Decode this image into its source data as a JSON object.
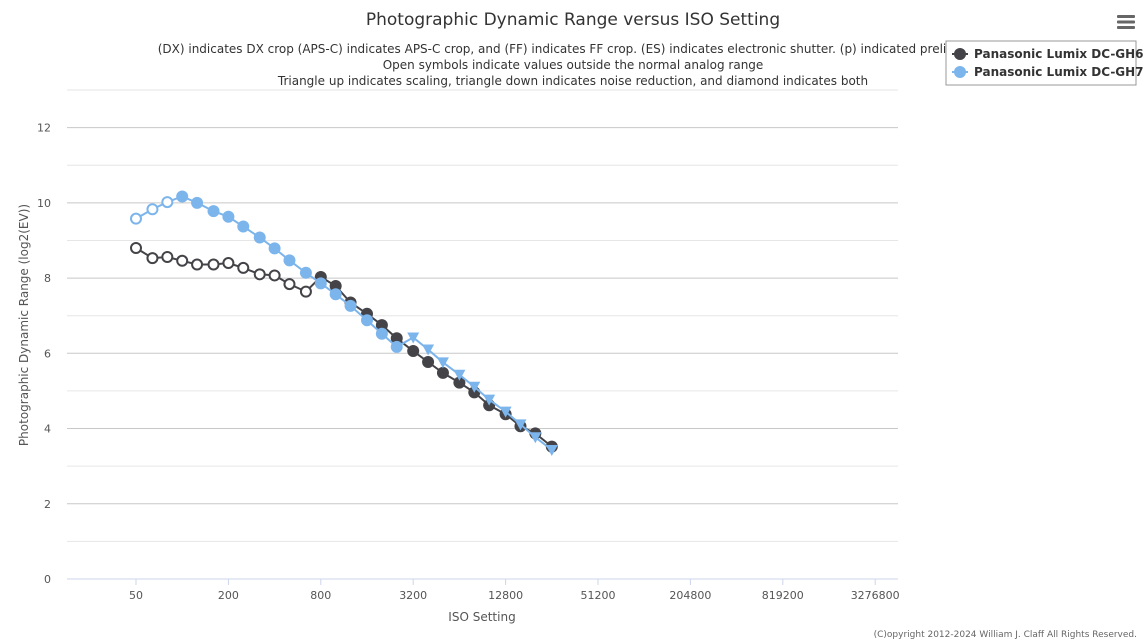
{
  "chart_data": {
    "type": "line",
    "title": "Photographic Dynamic Range versus ISO Setting",
    "subtitle": [
      "(DX) indicates DX crop (APS-C) indicates APS-C crop, and (FF) indicates FF crop. (ES) indicates electronic shutter. (p) indicated preliminary",
      "Open symbols indicate values outside the normal analog range",
      "Triangle up indicates scaling, triangle down indicates noise reduction, and diamond indicates both"
    ],
    "xlabel": "ISO Setting",
    "ylabel": "Photographic Dynamic Range (log2(EV))",
    "x_scale": "log2",
    "x_ticks": [
      50,
      200,
      800,
      3200,
      12800,
      51200,
      204800,
      819200,
      3276800
    ],
    "x_tick_labels": [
      "50",
      "200",
      "800",
      "3200",
      "12800",
      "51200",
      "204800",
      "819200",
      "3276800"
    ],
    "ylim": [
      0,
      13
    ],
    "y_ticks": [
      0,
      2,
      4,
      6,
      8,
      10,
      12
    ],
    "y_tick_labels": [
      "0",
      "2",
      "4",
      "6",
      "8",
      "10",
      "12"
    ],
    "grid": true,
    "legend_position": "top-right",
    "credit": "(C)opyright 2012-2024 William J. Claff All Rights Reserved.",
    "series": [
      {
        "name": "Panasonic Lumix DC-GH6",
        "color": "#434348",
        "points": [
          {
            "x": 50,
            "y": 8.8,
            "marker": "open-circle"
          },
          {
            "x": 64,
            "y": 8.53,
            "marker": "open-circle"
          },
          {
            "x": 80,
            "y": 8.56,
            "marker": "open-circle"
          },
          {
            "x": 100,
            "y": 8.46,
            "marker": "open-circle"
          },
          {
            "x": 125,
            "y": 8.36,
            "marker": "open-circle"
          },
          {
            "x": 160,
            "y": 8.36,
            "marker": "open-circle"
          },
          {
            "x": 200,
            "y": 8.4,
            "marker": "open-circle"
          },
          {
            "x": 250,
            "y": 8.27,
            "marker": "open-circle"
          },
          {
            "x": 320,
            "y": 8.1,
            "marker": "open-circle"
          },
          {
            "x": 400,
            "y": 8.07,
            "marker": "open-circle"
          },
          {
            "x": 500,
            "y": 7.84,
            "marker": "open-circle"
          },
          {
            "x": 640,
            "y": 7.64,
            "marker": "open-circle"
          },
          {
            "x": 800,
            "y": 8.03,
            "marker": "circle"
          },
          {
            "x": 1000,
            "y": 7.79,
            "marker": "circle"
          },
          {
            "x": 1250,
            "y": 7.35,
            "marker": "circle"
          },
          {
            "x": 1600,
            "y": 7.05,
            "marker": "circle"
          },
          {
            "x": 2000,
            "y": 6.75,
            "marker": "circle"
          },
          {
            "x": 2500,
            "y": 6.4,
            "marker": "circle"
          },
          {
            "x": 3200,
            "y": 6.06,
            "marker": "circle"
          },
          {
            "x": 4000,
            "y": 5.77,
            "marker": "circle"
          },
          {
            "x": 5000,
            "y": 5.48,
            "marker": "circle"
          },
          {
            "x": 6400,
            "y": 5.22,
            "marker": "circle"
          },
          {
            "x": 8000,
            "y": 4.96,
            "marker": "circle"
          },
          {
            "x": 10000,
            "y": 4.62,
            "marker": "circle"
          },
          {
            "x": 12800,
            "y": 4.38,
            "marker": "circle"
          },
          {
            "x": 16000,
            "y": 4.06,
            "marker": "circle"
          },
          {
            "x": 20000,
            "y": 3.87,
            "marker": "circle"
          },
          {
            "x": 25600,
            "y": 3.52,
            "marker": "circle"
          }
        ]
      },
      {
        "name": "Panasonic Lumix DC-GH7",
        "color": "#7cb5ec",
        "points": [
          {
            "x": 50,
            "y": 9.58,
            "marker": "open-circle"
          },
          {
            "x": 64,
            "y": 9.83,
            "marker": "open-circle"
          },
          {
            "x": 80,
            "y": 10.02,
            "marker": "open-circle"
          },
          {
            "x": 100,
            "y": 10.17,
            "marker": "circle"
          },
          {
            "x": 125,
            "y": 10.0,
            "marker": "circle"
          },
          {
            "x": 160,
            "y": 9.78,
            "marker": "circle"
          },
          {
            "x": 200,
            "y": 9.63,
            "marker": "circle"
          },
          {
            "x": 250,
            "y": 9.37,
            "marker": "circle"
          },
          {
            "x": 320,
            "y": 9.08,
            "marker": "circle"
          },
          {
            "x": 400,
            "y": 8.79,
            "marker": "circle"
          },
          {
            "x": 500,
            "y": 8.47,
            "marker": "circle"
          },
          {
            "x": 640,
            "y": 8.14,
            "marker": "circle"
          },
          {
            "x": 800,
            "y": 7.86,
            "marker": "circle"
          },
          {
            "x": 1000,
            "y": 7.57,
            "marker": "circle"
          },
          {
            "x": 1250,
            "y": 7.26,
            "marker": "circle"
          },
          {
            "x": 1600,
            "y": 6.88,
            "marker": "circle"
          },
          {
            "x": 2000,
            "y": 6.52,
            "marker": "circle"
          },
          {
            "x": 2500,
            "y": 6.17,
            "marker": "circle"
          },
          {
            "x": 3200,
            "y": 6.42,
            "marker": "triangle-down"
          },
          {
            "x": 4000,
            "y": 6.1,
            "marker": "triangle-down"
          },
          {
            "x": 5000,
            "y": 5.76,
            "marker": "triangle-down"
          },
          {
            "x": 6400,
            "y": 5.43,
            "marker": "triangle-down"
          },
          {
            "x": 8000,
            "y": 5.11,
            "marker": "triangle-down"
          },
          {
            "x": 10000,
            "y": 4.77,
            "marker": "triangle-down"
          },
          {
            "x": 12800,
            "y": 4.45,
            "marker": "triangle-down"
          },
          {
            "x": 16000,
            "y": 4.11,
            "marker": "triangle-down"
          },
          {
            "x": 20000,
            "y": 3.77,
            "marker": "triangle-down"
          },
          {
            "x": 25600,
            "y": 3.43,
            "marker": "triangle-down"
          }
        ]
      }
    ]
  },
  "menu_icon": "hamburger-menu-icon"
}
